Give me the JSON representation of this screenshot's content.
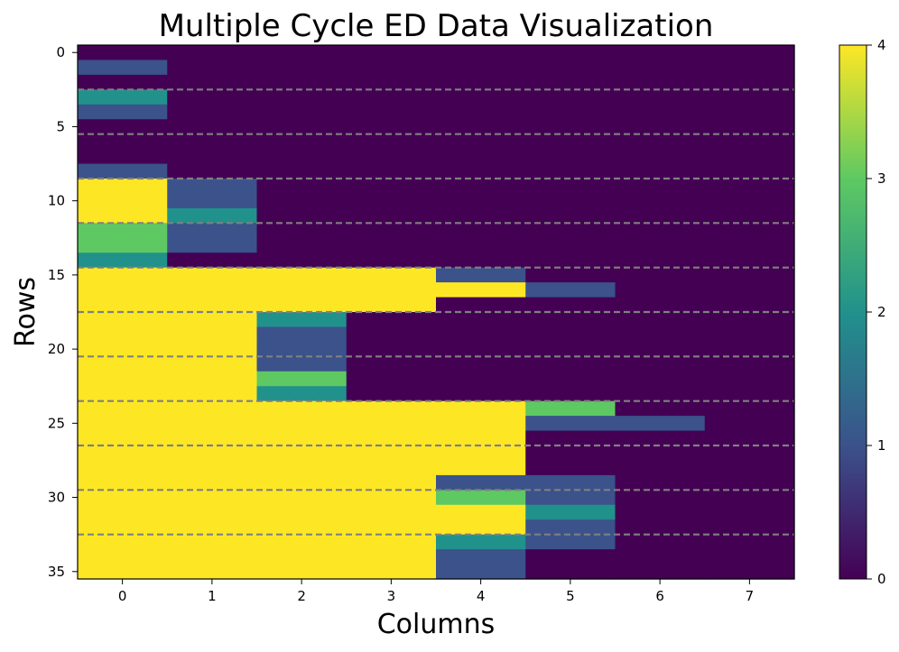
{
  "chart_data": {
    "type": "heatmap",
    "title": "Multiple Cycle ED Data Visualization",
    "xlabel": "Columns",
    "ylabel": "Rows",
    "xticks": [
      "0",
      "1",
      "2",
      "3",
      "4",
      "5",
      "6",
      "7"
    ],
    "yticks": [
      "0",
      "5",
      "10",
      "15",
      "20",
      "25",
      "30",
      "35"
    ],
    "ytick_values": [
      0,
      5,
      10,
      15,
      20,
      25,
      30,
      35
    ],
    "xlim": [
      -0.5,
      7.5
    ],
    "ylim": [
      -0.5,
      35.5
    ],
    "colormap": "viridis",
    "colorbar": {
      "min": 0,
      "max": 4,
      "ticks": [
        "0",
        "1",
        "2",
        "3",
        "4"
      ]
    },
    "dashed_lines_y": [
      2.5,
      5.5,
      8.5,
      11.5,
      14.5,
      17.5,
      20.5,
      23.5,
      26.5,
      29.5,
      32.5
    ],
    "dashed_line_color": "#808080",
    "matrix": [
      [
        0,
        0,
        0,
        0,
        0,
        0,
        0,
        0
      ],
      [
        1,
        0,
        0,
        0,
        0,
        0,
        0,
        0
      ],
      [
        0,
        0,
        0,
        0,
        0,
        0,
        0,
        0
      ],
      [
        2,
        0,
        0,
        0,
        0,
        0,
        0,
        0
      ],
      [
        1,
        0,
        0,
        0,
        0,
        0,
        0,
        0
      ],
      [
        0,
        0,
        0,
        0,
        0,
        0,
        0,
        0
      ],
      [
        0,
        0,
        0,
        0,
        0,
        0,
        0,
        0
      ],
      [
        0,
        0,
        0,
        0,
        0,
        0,
        0,
        0
      ],
      [
        1,
        0,
        0,
        0,
        0,
        0,
        0,
        0
      ],
      [
        4,
        1,
        0,
        0,
        0,
        0,
        0,
        0
      ],
      [
        4,
        1,
        0,
        0,
        0,
        0,
        0,
        0
      ],
      [
        4,
        2,
        0,
        0,
        0,
        0,
        0,
        0
      ],
      [
        3,
        1,
        0,
        0,
        0,
        0,
        0,
        0
      ],
      [
        3,
        1,
        0,
        0,
        0,
        0,
        0,
        0
      ],
      [
        2,
        0,
        0,
        0,
        0,
        0,
        0,
        0
      ],
      [
        4,
        4,
        4,
        4,
        1,
        0,
        0,
        0
      ],
      [
        4,
        4,
        4,
        4,
        4,
        1,
        0,
        0
      ],
      [
        4,
        4,
        4,
        4,
        0,
        0,
        0,
        0
      ],
      [
        4,
        4,
        2,
        0,
        0,
        0,
        0,
        0
      ],
      [
        4,
        4,
        1,
        0,
        0,
        0,
        0,
        0
      ],
      [
        4,
        4,
        1,
        0,
        0,
        0,
        0,
        0
      ],
      [
        4,
        4,
        1,
        0,
        0,
        0,
        0,
        0
      ],
      [
        4,
        4,
        3,
        0,
        0,
        0,
        0,
        0
      ],
      [
        4,
        4,
        2,
        0,
        0,
        0,
        0,
        0
      ],
      [
        4,
        4,
        4,
        4,
        4,
        3,
        0,
        0
      ],
      [
        4,
        4,
        4,
        4,
        4,
        1,
        1,
        0
      ],
      [
        4,
        4,
        4,
        4,
        4,
        0,
        0,
        0
      ],
      [
        4,
        4,
        4,
        4,
        4,
        0,
        0,
        0
      ],
      [
        4,
        4,
        4,
        4,
        4,
        0,
        0,
        0
      ],
      [
        4,
        4,
        4,
        4,
        1,
        1,
        0,
        0
      ],
      [
        4,
        4,
        4,
        4,
        3,
        1,
        0,
        0
      ],
      [
        4,
        4,
        4,
        4,
        4,
        2,
        0,
        0
      ],
      [
        4,
        4,
        4,
        4,
        4,
        1,
        0,
        0
      ],
      [
        4,
        4,
        4,
        4,
        2,
        1,
        0,
        0
      ],
      [
        4,
        4,
        4,
        4,
        1,
        0,
        0,
        0
      ],
      [
        4,
        4,
        4,
        4,
        1,
        0,
        0,
        0
      ]
    ]
  }
}
